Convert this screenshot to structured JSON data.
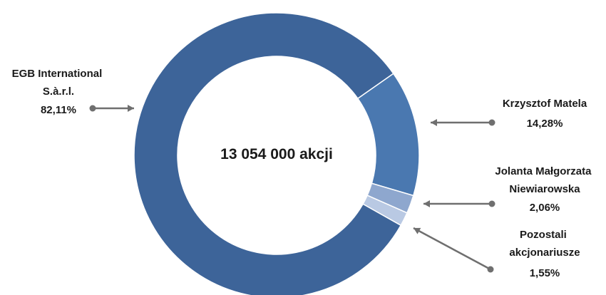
{
  "chart_data": {
    "type": "pie",
    "subtype": "donut",
    "center_label": "13 054 000 akcji",
    "slices": [
      {
        "label_lines": [
          "EGB International",
          "S.à.r.l."
        ],
        "value_label": "82,11%",
        "value": 82.11,
        "color": "#3d6499"
      },
      {
        "label_lines": [
          "Krzysztof Matela"
        ],
        "value_label": "14,28%",
        "value": 14.28,
        "color": "#4a78b0"
      },
      {
        "label_lines": [
          "Jolanta Małgorzata",
          "Niewiarowska"
        ],
        "value_label": "2,06%",
        "value": 2.06,
        "color": "#8ea7ce"
      },
      {
        "label_lines": [
          "Pozostali",
          "akcjonariusze"
        ],
        "value_label": "1,55%",
        "value": 1.55,
        "color": "#b9c9e3"
      }
    ],
    "start_angle_deg": 0,
    "direction": "clockwise-from-first-slice-end",
    "legend": "none"
  },
  "colors": {
    "connector": "#6f6f6f",
    "slice_border": "#ffffff",
    "text": "#1a1a1a"
  }
}
